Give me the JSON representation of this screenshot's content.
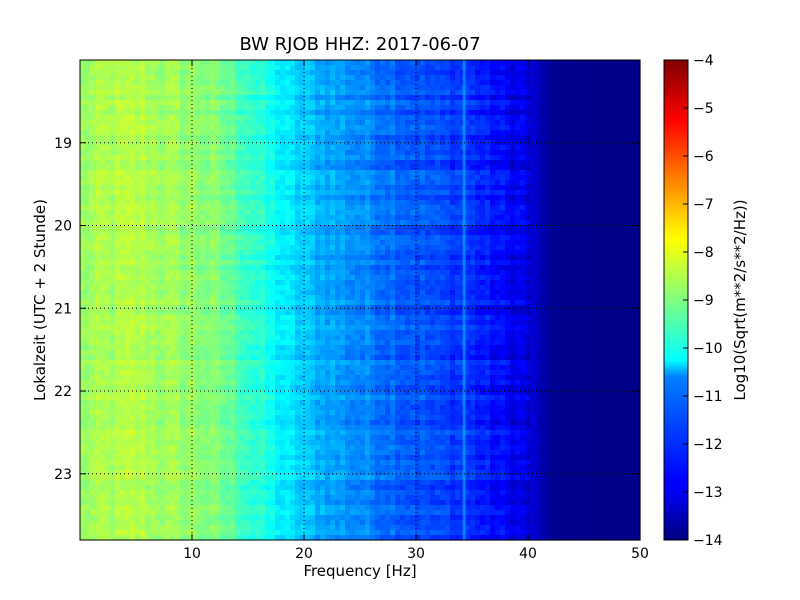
{
  "chart_data": {
    "type": "heatmap",
    "title": "BW RJOB HHZ: 2017-06-07",
    "xlabel": "Frequency [Hz]",
    "ylabel": "Lokalzeit (UTC + 2 Stunde)",
    "xlim": [
      0,
      50
    ],
    "ylim": [
      18.0,
      23.8
    ],
    "y_inverted": true,
    "xticks": [
      10,
      20,
      30,
      40,
      50
    ],
    "yticks": [
      19,
      20,
      21,
      22,
      23
    ],
    "grid": true,
    "colormap": "jet",
    "colorbar": {
      "label": "Log10(Sqrt(m**2/s**2/Hz))",
      "range": [
        -14,
        -4
      ],
      "ticks": [
        -4,
        -5,
        -6,
        -7,
        -8,
        -9,
        -10,
        -11,
        -12,
        -13,
        -14
      ]
    },
    "spectral_profile": {
      "frequency_hz": [
        0,
        2,
        5,
        8,
        10,
        12,
        14,
        16,
        18,
        20,
        22,
        24,
        26,
        28,
        30,
        32,
        34,
        36,
        38,
        40,
        41,
        42,
        45,
        50
      ],
      "log10_amplitude": [
        -8.8,
        -8.6,
        -8.5,
        -8.7,
        -8.8,
        -9.0,
        -9.4,
        -9.9,
        -10.4,
        -10.8,
        -11.1,
        -11.3,
        -11.5,
        -11.7,
        -11.9,
        -12.1,
        -12.2,
        -12.5,
        -12.8,
        -13.0,
        -13.4,
        -13.8,
        -13.9,
        -13.9
      ]
    },
    "features": {
      "tonal_line_hz": 34.3,
      "tonal_line_log10_amplitude": -10.8
    }
  }
}
